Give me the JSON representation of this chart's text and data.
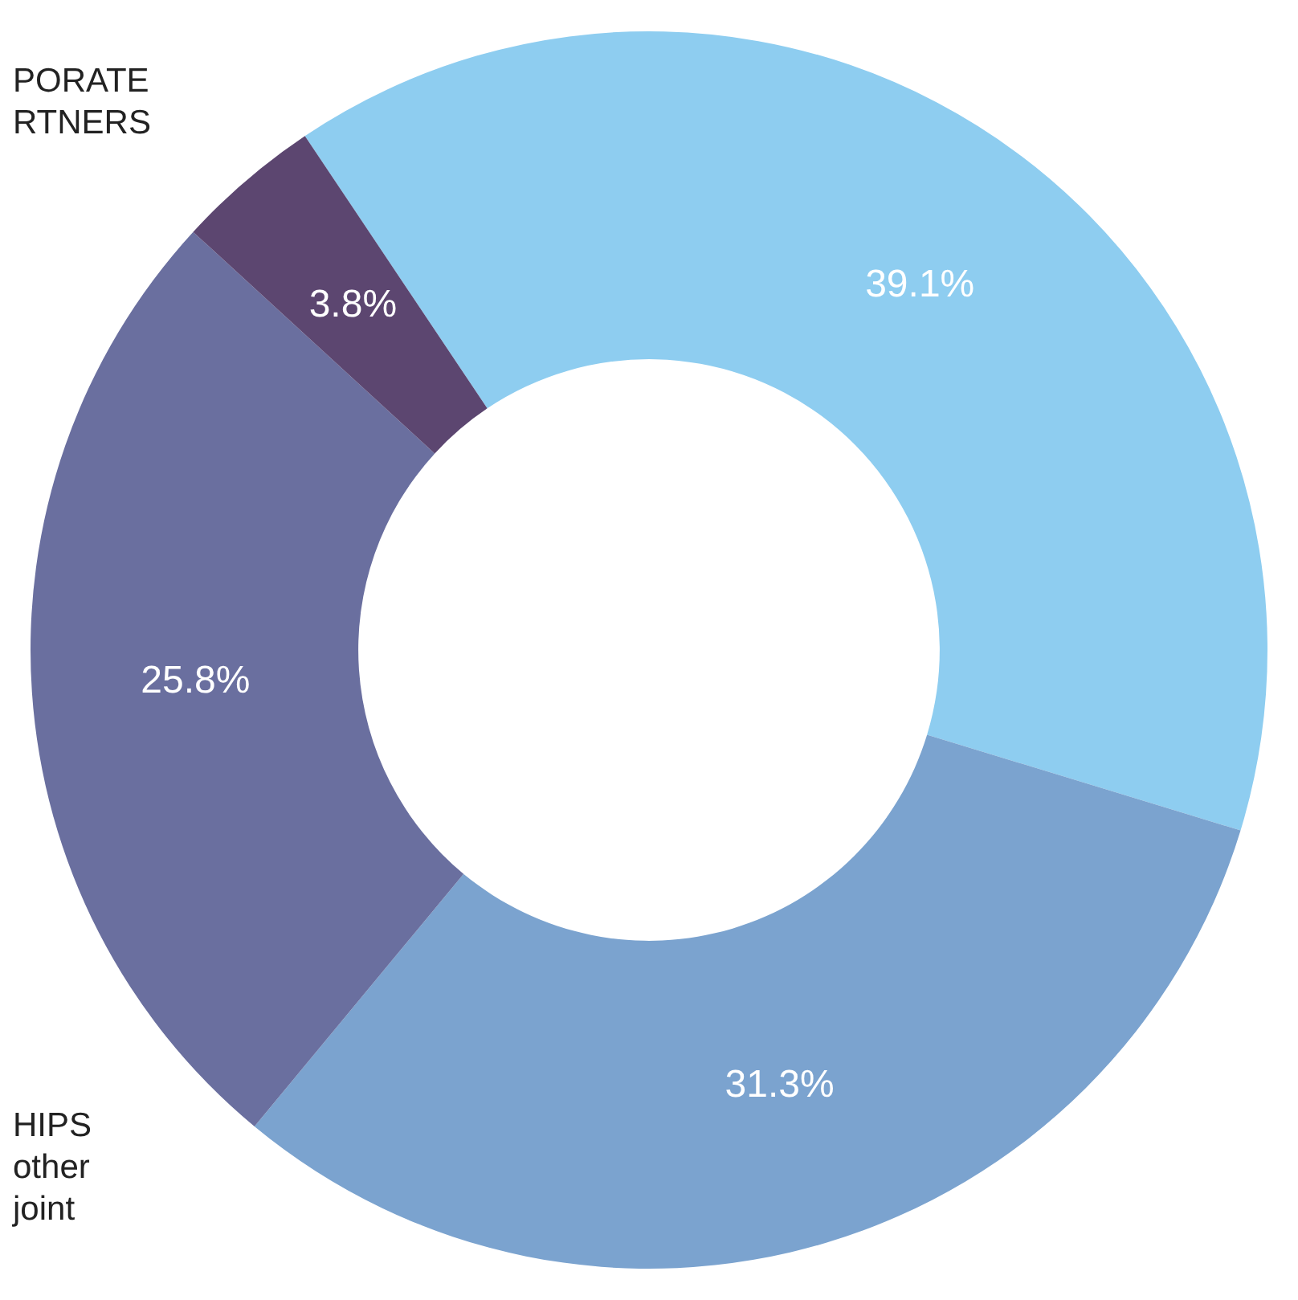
{
  "chart_data": {
    "type": "donut",
    "categories": [
      null,
      null,
      null,
      null
    ],
    "values": [
      39.1,
      31.3,
      25.8,
      3.8
    ],
    "colors": [
      "#8ecdf0",
      "#7ba3cf",
      "#6a6f9f",
      "#5c4670"
    ],
    "value_labels": [
      "39.1%",
      "31.3%",
      "25.8%",
      "3.8%"
    ],
    "annotations": [
      "PORATE\nRTNERS",
      "HIPS\nother\njoint"
    ]
  }
}
